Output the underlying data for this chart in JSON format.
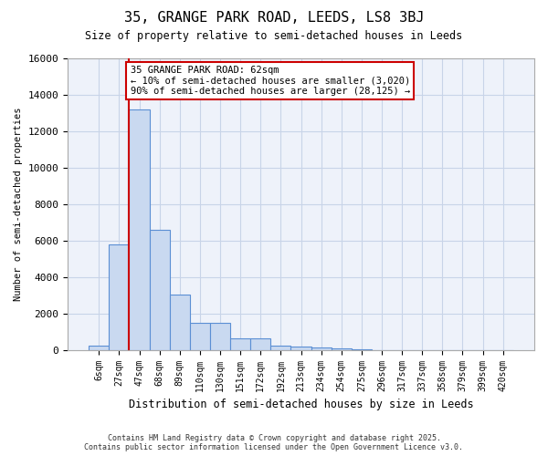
{
  "title1": "35, GRANGE PARK ROAD, LEEDS, LS8 3BJ",
  "title2": "Size of property relative to semi-detached houses in Leeds",
  "xlabel": "Distribution of semi-detached houses by size in Leeds",
  "ylabel": "Number of semi-detached properties",
  "bin_labels": [
    "6sqm",
    "27sqm",
    "47sqm",
    "68sqm",
    "89sqm",
    "110sqm",
    "130sqm",
    "151sqm",
    "172sqm",
    "192sqm",
    "213sqm",
    "234sqm",
    "254sqm",
    "275sqm",
    "296sqm",
    "317sqm",
    "337sqm",
    "358sqm",
    "379sqm",
    "399sqm",
    "420sqm"
  ],
  "bar_values": [
    250,
    5800,
    13200,
    6600,
    3050,
    1480,
    1480,
    620,
    620,
    230,
    200,
    120,
    100,
    50,
    0,
    0,
    0,
    0,
    0,
    0,
    0
  ],
  "ylim": [
    0,
    16000
  ],
  "yticks": [
    0,
    2000,
    4000,
    6000,
    8000,
    10000,
    12000,
    14000,
    16000
  ],
  "bar_color": "#c9d9f0",
  "bar_edge_color": "#5b8fd4",
  "vline_x": 1.5,
  "vline_color": "#cc0000",
  "annotation_text": "35 GRANGE PARK ROAD: 62sqm\n← 10% of semi-detached houses are smaller (3,020)\n90% of semi-detached houses are larger (28,125) →",
  "annotation_box_color": "#ffffff",
  "annotation_box_edge": "#cc0000",
  "footer1": "Contains HM Land Registry data © Crown copyright and database right 2025.",
  "footer2": "Contains public sector information licensed under the Open Government Licence v3.0.",
  "grid_color": "#c8d4e8",
  "bg_color": "#eef2fa"
}
